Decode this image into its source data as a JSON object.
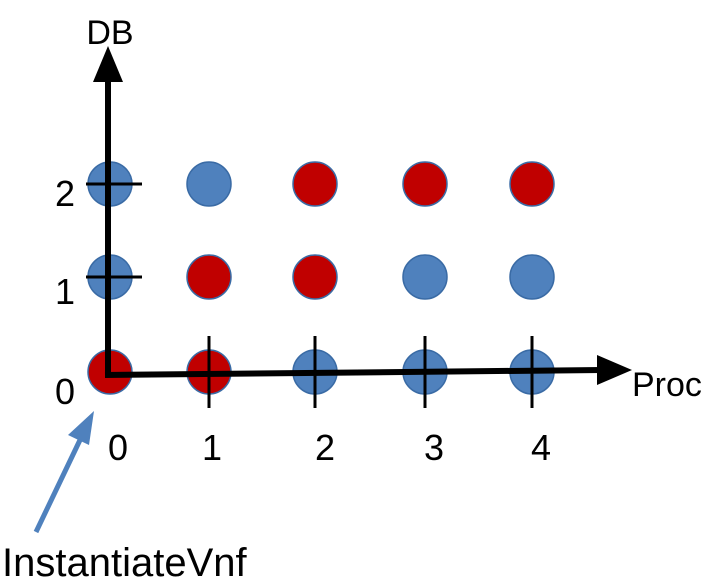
{
  "diagram": {
    "x_axis_label": "Proc",
    "y_axis_label": "DB",
    "x_ticks": [
      "0",
      "1",
      "2",
      "3",
      "4"
    ],
    "y_ticks": [
      "0",
      "1",
      "2"
    ],
    "callout_label": "InstantiateVnf",
    "colors": {
      "red_state": "#C00000",
      "blue_state": "#4F81BD",
      "axis": "#000000",
      "callout_arrow": "#4F81BD"
    },
    "points": [
      {
        "proc": 0,
        "db": 2,
        "color": "blue"
      },
      {
        "proc": 1,
        "db": 2,
        "color": "blue"
      },
      {
        "proc": 2,
        "db": 2,
        "color": "red"
      },
      {
        "proc": 3,
        "db": 2,
        "color": "red"
      },
      {
        "proc": 4,
        "db": 2,
        "color": "red"
      },
      {
        "proc": 0,
        "db": 1,
        "color": "blue"
      },
      {
        "proc": 1,
        "db": 1,
        "color": "red"
      },
      {
        "proc": 2,
        "db": 1,
        "color": "red"
      },
      {
        "proc": 3,
        "db": 1,
        "color": "blue"
      },
      {
        "proc": 4,
        "db": 1,
        "color": "blue"
      },
      {
        "proc": 0,
        "db": 0,
        "color": "red"
      },
      {
        "proc": 1,
        "db": 0,
        "color": "red"
      },
      {
        "proc": 2,
        "db": 0,
        "color": "blue"
      },
      {
        "proc": 3,
        "db": 0,
        "color": "blue"
      },
      {
        "proc": 4,
        "db": 0,
        "color": "blue"
      }
    ]
  }
}
